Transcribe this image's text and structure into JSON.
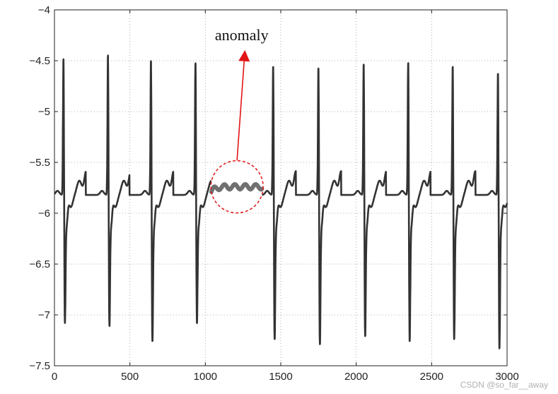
{
  "chart_data": {
    "type": "line",
    "title": "",
    "xlabel": "",
    "ylabel": "",
    "xlim": [
      0,
      3000
    ],
    "ylim": [
      -7.5,
      -4
    ],
    "xticks": [
      0,
      500,
      1000,
      1500,
      2000,
      2500,
      3000
    ],
    "yticks": [
      -4,
      -4.5,
      -5,
      -5.5,
      -6,
      -6.5,
      -7,
      -7.5
    ],
    "xtick_labels": [
      "0",
      "500",
      "1000",
      "1500",
      "2000",
      "2500",
      "3000"
    ],
    "ytick_labels": [
      "−4",
      "−4.5",
      "−5",
      "−5.5",
      "−6",
      "−6.5",
      "−7",
      "−7.5"
    ],
    "grid": true,
    "grid_style": "dotted",
    "line_color": "#333333",
    "anomaly_color": "#707070",
    "highlight_color": "#e01515",
    "peak_times": [
      60,
      355,
      640,
      935,
      1450,
      1750,
      2050,
      2345,
      2640,
      2940
    ],
    "peak_values": [
      -4.36,
      -4.32,
      -4.36,
      -4.4,
      -4.42,
      -4.43,
      -4.4,
      -4.38,
      -4.42,
      -4.48
    ],
    "trough_values": [
      -6.97,
      -7.0,
      -7.15,
      -6.97,
      -7.13,
      -7.18,
      -7.1,
      -7.15,
      -7.13,
      -7.22
    ],
    "anomaly_range": [
      1040,
      1375
    ],
    "anomaly_level": -5.74,
    "annotation": {
      "text": "anomaly",
      "circle_center": [
        1210,
        -5.74
      ],
      "arrow_tip": [
        1260,
        -4.45
      ],
      "arrow_tail": [
        1210,
        -5.48
      ]
    },
    "watermark": "CSDN @so_far__away"
  }
}
